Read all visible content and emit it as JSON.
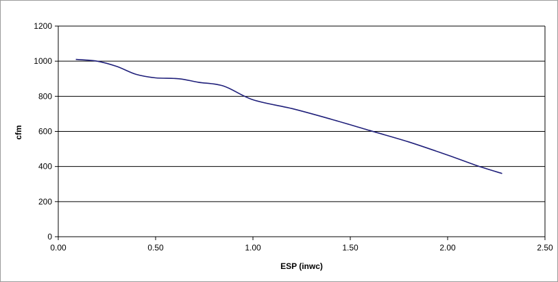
{
  "chart_data": {
    "type": "line",
    "title": "",
    "xlabel": "ESP (inwc)",
    "ylabel": "cfm",
    "xlim": [
      0,
      2.5
    ],
    "ylim": [
      0,
      1200
    ],
    "x_ticks": [
      "0.00",
      "0.50",
      "1.00",
      "1.50",
      "2.00",
      "2.50"
    ],
    "y_ticks": [
      "0",
      "200",
      "400",
      "600",
      "800",
      "1000",
      "1200"
    ],
    "grid": "horizontal",
    "legend": "none",
    "series": [
      {
        "color": "#1f1f7a",
        "points": [
          {
            "x": 0.09,
            "y": 1010
          },
          {
            "x": 0.2,
            "y": 1000
          },
          {
            "x": 0.3,
            "y": 970
          },
          {
            "x": 0.4,
            "y": 925
          },
          {
            "x": 0.5,
            "y": 905
          },
          {
            "x": 0.62,
            "y": 900
          },
          {
            "x": 0.72,
            "y": 880
          },
          {
            "x": 0.85,
            "y": 858
          },
          {
            "x": 1.0,
            "y": 780
          },
          {
            "x": 1.2,
            "y": 730
          },
          {
            "x": 1.4,
            "y": 670
          },
          {
            "x": 1.6,
            "y": 605
          },
          {
            "x": 1.8,
            "y": 540
          },
          {
            "x": 2.0,
            "y": 465
          },
          {
            "x": 2.15,
            "y": 405
          },
          {
            "x": 2.28,
            "y": 360
          }
        ]
      }
    ]
  }
}
